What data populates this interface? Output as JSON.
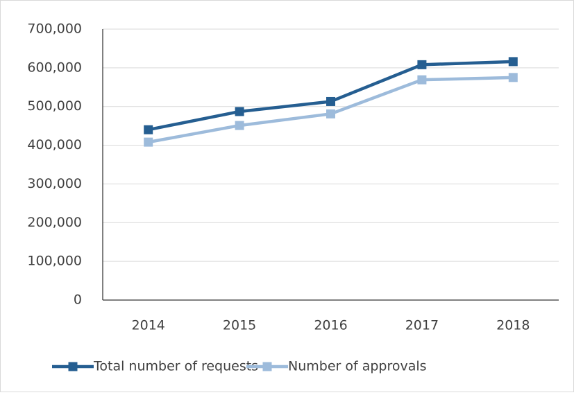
{
  "chart_data": {
    "type": "line",
    "categories": [
      "2014",
      "2015",
      "2016",
      "2017",
      "2018"
    ],
    "series": [
      {
        "name": "Total number of requests",
        "color": "#255e91",
        "values": [
          440000,
          487000,
          513000,
          608000,
          616000
        ]
      },
      {
        "name": "Number of approvals",
        "color": "#9dbbdb",
        "values": [
          408000,
          451000,
          481000,
          569000,
          575000
        ]
      }
    ],
    "ylim": [
      0,
      700000
    ],
    "yticks": [
      0,
      {
        "value": 100000,
        "label": "100,000"
      },
      {
        "value": 200000,
        "label": "200,000"
      },
      {
        "value": 300000,
        "label": "300,000"
      },
      {
        "value": 400000,
        "label": "400,000"
      },
      {
        "value": 500000,
        "label": "500,000"
      },
      {
        "value": 600000,
        "label": "600,000"
      },
      {
        "value": 700000,
        "label": "700,000"
      }
    ],
    "grid": true,
    "legend": "bottom"
  }
}
